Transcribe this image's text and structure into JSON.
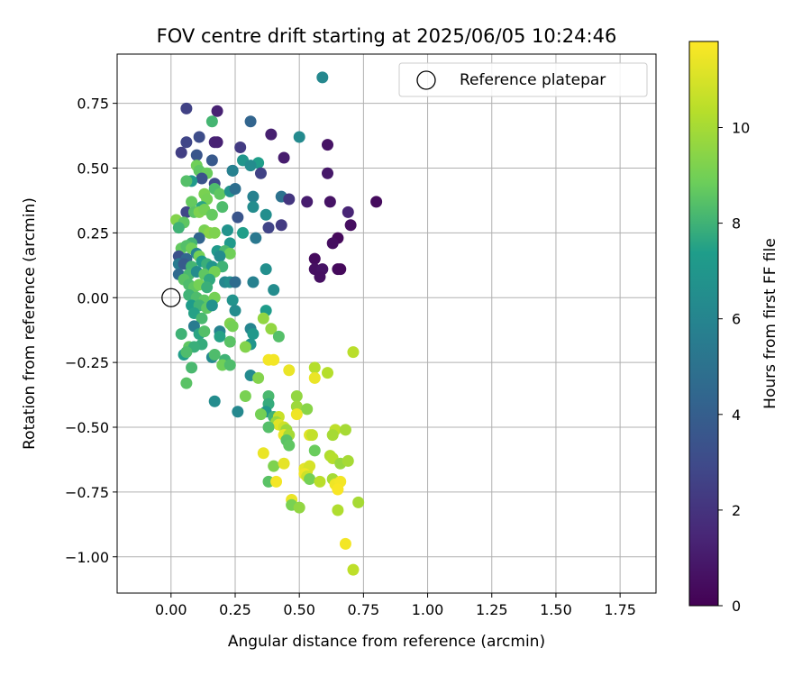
{
  "chart_data": {
    "type": "scatter",
    "title": "FOV centre drift starting at 2025/06/05 10:24:46",
    "xlabel": "Angular distance from reference (arcmin)",
    "ylabel": "Rotation from reference (arcmin)",
    "xlim": [
      -0.21,
      1.89
    ],
    "ylim": [
      -1.14,
      0.94
    ],
    "x_ticks": [
      0.0,
      0.25,
      0.5,
      0.75,
      1.0,
      1.25,
      1.5,
      1.75
    ],
    "x_tick_labels": [
      "0.00",
      "0.25",
      "0.50",
      "0.75",
      "1.00",
      "1.25",
      "1.50",
      "1.75"
    ],
    "y_ticks": [
      -1.0,
      -0.75,
      -0.5,
      -0.25,
      0.0,
      0.25,
      0.5,
      0.75
    ],
    "y_tick_labels": [
      "−1.00",
      "−0.75",
      "−0.50",
      "−0.25",
      "0.00",
      "0.25",
      "0.50",
      "0.75"
    ],
    "grid": true,
    "legend": {
      "position": "top-right",
      "entries": [
        {
          "label": "Reference platepar",
          "marker": "open-circle"
        }
      ]
    },
    "reference_point": {
      "x": 0.0,
      "y": 0.0
    },
    "colorbar": {
      "label": "Hours from first FF file",
      "colormap": "viridis",
      "range": [
        0,
        11.8
      ],
      "ticks": [
        0,
        2,
        4,
        6,
        8,
        10
      ],
      "tick_labels": [
        "0",
        "2",
        "4",
        "6",
        "8",
        "10"
      ]
    },
    "points": [
      {
        "x": 0.59,
        "y": 0.85,
        "h": 6.2
      },
      {
        "x": 0.06,
        "y": 0.73,
        "h": 2.6
      },
      {
        "x": 0.18,
        "y": 0.72,
        "h": 1.3
      },
      {
        "x": 0.31,
        "y": 0.68,
        "h": 4.3
      },
      {
        "x": 0.16,
        "y": 0.68,
        "h": 8.1
      },
      {
        "x": 0.39,
        "y": 0.63,
        "h": 1.2
      },
      {
        "x": 0.5,
        "y": 0.62,
        "h": 6.3
      },
      {
        "x": 0.11,
        "y": 0.62,
        "h": 3.1
      },
      {
        "x": 0.06,
        "y": 0.6,
        "h": 2.8
      },
      {
        "x": 0.17,
        "y": 0.6,
        "h": 1.4
      },
      {
        "x": 0.18,
        "y": 0.6,
        "h": 1.3
      },
      {
        "x": 0.61,
        "y": 0.59,
        "h": 0.7
      },
      {
        "x": 0.27,
        "y": 0.58,
        "h": 2.3
      },
      {
        "x": 0.04,
        "y": 0.56,
        "h": 2.5
      },
      {
        "x": 0.1,
        "y": 0.55,
        "h": 3.5
      },
      {
        "x": 0.44,
        "y": 0.54,
        "h": 1.1
      },
      {
        "x": 0.16,
        "y": 0.53,
        "h": 3.7
      },
      {
        "x": 0.28,
        "y": 0.53,
        "h": 7.0
      },
      {
        "x": 0.34,
        "y": 0.52,
        "h": 7.4
      },
      {
        "x": 0.31,
        "y": 0.51,
        "h": 6.4
      },
      {
        "x": 0.24,
        "y": 0.49,
        "h": 3.8
      },
      {
        "x": 0.1,
        "y": 0.51,
        "h": 8.9
      },
      {
        "x": 0.11,
        "y": 0.49,
        "h": 8.6
      },
      {
        "x": 0.14,
        "y": 0.48,
        "h": 8.8
      },
      {
        "x": 0.24,
        "y": 0.49,
        "h": 5.8
      },
      {
        "x": 0.35,
        "y": 0.48,
        "h": 2.6
      },
      {
        "x": 0.61,
        "y": 0.48,
        "h": 0.9
      },
      {
        "x": 0.12,
        "y": 0.46,
        "h": 3.4
      },
      {
        "x": 0.08,
        "y": 0.45,
        "h": 7.2
      },
      {
        "x": 0.06,
        "y": 0.45,
        "h": 8.4
      },
      {
        "x": 0.17,
        "y": 0.44,
        "h": 3.0
      },
      {
        "x": 0.17,
        "y": 0.42,
        "h": 8.3
      },
      {
        "x": 0.19,
        "y": 0.4,
        "h": 8.6
      },
      {
        "x": 0.23,
        "y": 0.41,
        "h": 6.8
      },
      {
        "x": 0.25,
        "y": 0.42,
        "h": 4.8
      },
      {
        "x": 0.32,
        "y": 0.39,
        "h": 5.8
      },
      {
        "x": 0.43,
        "y": 0.39,
        "h": 5.0
      },
      {
        "x": 0.46,
        "y": 0.38,
        "h": 2.1
      },
      {
        "x": 0.53,
        "y": 0.37,
        "h": 1.1
      },
      {
        "x": 0.62,
        "y": 0.37,
        "h": 0.7
      },
      {
        "x": 0.8,
        "y": 0.37,
        "h": 0.4
      },
      {
        "x": 0.13,
        "y": 0.4,
        "h": 9.1
      },
      {
        "x": 0.14,
        "y": 0.38,
        "h": 9.0
      },
      {
        "x": 0.08,
        "y": 0.37,
        "h": 8.7
      },
      {
        "x": 0.12,
        "y": 0.35,
        "h": 7.6
      },
      {
        "x": 0.2,
        "y": 0.35,
        "h": 8.3
      },
      {
        "x": 0.32,
        "y": 0.35,
        "h": 6.4
      },
      {
        "x": 0.69,
        "y": 0.33,
        "h": 1.4
      },
      {
        "x": 0.06,
        "y": 0.33,
        "h": 2.8
      },
      {
        "x": 0.09,
        "y": 0.33,
        "h": 8.5
      },
      {
        "x": 0.11,
        "y": 0.33,
        "h": 9.2
      },
      {
        "x": 0.13,
        "y": 0.34,
        "h": 9.0
      },
      {
        "x": 0.16,
        "y": 0.32,
        "h": 8.7
      },
      {
        "x": 0.26,
        "y": 0.31,
        "h": 3.5
      },
      {
        "x": 0.37,
        "y": 0.32,
        "h": 6.5
      },
      {
        "x": 0.02,
        "y": 0.3,
        "h": 9.3
      },
      {
        "x": 0.05,
        "y": 0.29,
        "h": 8.6
      },
      {
        "x": 0.03,
        "y": 0.27,
        "h": 8.0
      },
      {
        "x": 0.13,
        "y": 0.26,
        "h": 9.1
      },
      {
        "x": 0.15,
        "y": 0.25,
        "h": 9.4
      },
      {
        "x": 0.17,
        "y": 0.25,
        "h": 9.2
      },
      {
        "x": 0.22,
        "y": 0.26,
        "h": 6.8
      },
      {
        "x": 0.28,
        "y": 0.25,
        "h": 7.4
      },
      {
        "x": 0.38,
        "y": 0.27,
        "h": 2.7
      },
      {
        "x": 0.43,
        "y": 0.28,
        "h": 2.3
      },
      {
        "x": 0.7,
        "y": 0.28,
        "h": 0.5
      },
      {
        "x": 0.65,
        "y": 0.23,
        "h": 0.3
      },
      {
        "x": 0.33,
        "y": 0.23,
        "h": 5.3
      },
      {
        "x": 0.11,
        "y": 0.23,
        "h": 4.3
      },
      {
        "x": 0.08,
        "y": 0.21,
        "h": 8.1
      },
      {
        "x": 0.23,
        "y": 0.21,
        "h": 7.2
      },
      {
        "x": 0.63,
        "y": 0.21,
        "h": 0.5
      },
      {
        "x": 0.04,
        "y": 0.19,
        "h": 8.7
      },
      {
        "x": 0.06,
        "y": 0.2,
        "h": 8.4
      },
      {
        "x": 0.08,
        "y": 0.19,
        "h": 8.9
      },
      {
        "x": 0.1,
        "y": 0.17,
        "h": 6.0
      },
      {
        "x": 0.18,
        "y": 0.18,
        "h": 7.2
      },
      {
        "x": 0.21,
        "y": 0.18,
        "h": 8.2
      },
      {
        "x": 0.23,
        "y": 0.17,
        "h": 8.9
      },
      {
        "x": 0.03,
        "y": 0.16,
        "h": 3.3
      },
      {
        "x": 0.06,
        "y": 0.15,
        "h": 4.4
      },
      {
        "x": 0.11,
        "y": 0.16,
        "h": 9.0
      },
      {
        "x": 0.12,
        "y": 0.14,
        "h": 7.3
      },
      {
        "x": 0.19,
        "y": 0.16,
        "h": 6.4
      },
      {
        "x": 0.56,
        "y": 0.15,
        "h": 0.4
      },
      {
        "x": 0.03,
        "y": 0.13,
        "h": 5.5
      },
      {
        "x": 0.05,
        "y": 0.13,
        "h": 3.8
      },
      {
        "x": 0.08,
        "y": 0.12,
        "h": 8.1
      },
      {
        "x": 0.14,
        "y": 0.13,
        "h": 7.9
      },
      {
        "x": 0.16,
        "y": 0.12,
        "h": 6.9
      },
      {
        "x": 0.2,
        "y": 0.12,
        "h": 8.0
      },
      {
        "x": 0.37,
        "y": 0.11,
        "h": 6.6
      },
      {
        "x": 0.56,
        "y": 0.11,
        "h": 0.6
      },
      {
        "x": 0.59,
        "y": 0.11,
        "h": 0.7
      },
      {
        "x": 0.65,
        "y": 0.11,
        "h": 0.4
      },
      {
        "x": 0.66,
        "y": 0.11,
        "h": 0.3
      },
      {
        "x": 0.03,
        "y": 0.09,
        "h": 4.6
      },
      {
        "x": 0.07,
        "y": 0.09,
        "h": 8.2
      },
      {
        "x": 0.1,
        "y": 0.1,
        "h": 6.4
      },
      {
        "x": 0.13,
        "y": 0.09,
        "h": 8.6
      },
      {
        "x": 0.17,
        "y": 0.1,
        "h": 9.0
      },
      {
        "x": 0.58,
        "y": 0.08,
        "h": 0.6
      },
      {
        "x": 0.05,
        "y": 0.07,
        "h": 8.5
      },
      {
        "x": 0.15,
        "y": 0.07,
        "h": 7.7
      },
      {
        "x": 0.21,
        "y": 0.06,
        "h": 6.1
      },
      {
        "x": 0.23,
        "y": 0.06,
        "h": 6.6
      },
      {
        "x": 0.25,
        "y": 0.06,
        "h": 4.7
      },
      {
        "x": 0.32,
        "y": 0.06,
        "h": 5.8
      },
      {
        "x": 0.07,
        "y": 0.05,
        "h": 8.3
      },
      {
        "x": 0.09,
        "y": 0.04,
        "h": 8.6
      },
      {
        "x": 0.11,
        "y": 0.05,
        "h": 9.0
      },
      {
        "x": 0.14,
        "y": 0.04,
        "h": 7.9
      },
      {
        "x": 0.4,
        "y": 0.03,
        "h": 6.4
      },
      {
        "x": 0.07,
        "y": 0.01,
        "h": 8.0
      },
      {
        "x": 0.1,
        "y": 0.0,
        "h": 8.3
      },
      {
        "x": 0.13,
        "y": -0.01,
        "h": 8.6
      },
      {
        "x": 0.17,
        "y": 0.0,
        "h": 9.0
      },
      {
        "x": 0.24,
        "y": -0.01,
        "h": 6.8
      },
      {
        "x": 0.08,
        "y": -0.03,
        "h": 7.3
      },
      {
        "x": 0.11,
        "y": -0.03,
        "h": 8.0
      },
      {
        "x": 0.14,
        "y": -0.04,
        "h": 8.6
      },
      {
        "x": 0.16,
        "y": -0.03,
        "h": 6.7
      },
      {
        "x": 0.25,
        "y": -0.05,
        "h": 6.4
      },
      {
        "x": 0.37,
        "y": -0.05,
        "h": 7.3
      },
      {
        "x": 0.09,
        "y": -0.06,
        "h": 7.5
      },
      {
        "x": 0.12,
        "y": -0.08,
        "h": 8.2
      },
      {
        "x": 0.36,
        "y": -0.08,
        "h": 9.6
      },
      {
        "x": 0.23,
        "y": -0.1,
        "h": 9.2
      },
      {
        "x": 0.24,
        "y": -0.11,
        "h": 9.0
      },
      {
        "x": 0.09,
        "y": -0.11,
        "h": 5.5
      },
      {
        "x": 0.19,
        "y": -0.13,
        "h": 5.9
      },
      {
        "x": 0.31,
        "y": -0.12,
        "h": 6.0
      },
      {
        "x": 0.39,
        "y": -0.12,
        "h": 9.6
      },
      {
        "x": 0.04,
        "y": -0.14,
        "h": 8.0
      },
      {
        "x": 0.11,
        "y": -0.14,
        "h": 7.6
      },
      {
        "x": 0.13,
        "y": -0.13,
        "h": 8.4
      },
      {
        "x": 0.19,
        "y": -0.15,
        "h": 7.5
      },
      {
        "x": 0.32,
        "y": -0.14,
        "h": 7.1
      },
      {
        "x": 0.42,
        "y": -0.15,
        "h": 8.4
      },
      {
        "x": 0.12,
        "y": -0.18,
        "h": 7.8
      },
      {
        "x": 0.23,
        "y": -0.17,
        "h": 8.5
      },
      {
        "x": 0.31,
        "y": -0.18,
        "h": 6.9
      },
      {
        "x": 0.07,
        "y": -0.19,
        "h": 8.6
      },
      {
        "x": 0.09,
        "y": -0.19,
        "h": 7.9
      },
      {
        "x": 0.29,
        "y": -0.19,
        "h": 9.3
      },
      {
        "x": 0.05,
        "y": -0.22,
        "h": 7.4
      },
      {
        "x": 0.06,
        "y": -0.21,
        "h": 8.3
      },
      {
        "x": 0.16,
        "y": -0.23,
        "h": 6.3
      },
      {
        "x": 0.17,
        "y": -0.22,
        "h": 8.3
      },
      {
        "x": 0.21,
        "y": -0.24,
        "h": 8.0
      },
      {
        "x": 0.38,
        "y": -0.24,
        "h": 11.6
      },
      {
        "x": 0.4,
        "y": -0.24,
        "h": 11.6
      },
      {
        "x": 0.71,
        "y": -0.21,
        "h": 10.4
      },
      {
        "x": 0.08,
        "y": -0.27,
        "h": 8.2
      },
      {
        "x": 0.2,
        "y": -0.26,
        "h": 8.9
      },
      {
        "x": 0.23,
        "y": -0.26,
        "h": 8.3
      },
      {
        "x": 0.46,
        "y": -0.28,
        "h": 11.4
      },
      {
        "x": 0.56,
        "y": -0.27,
        "h": 10.3
      },
      {
        "x": 0.61,
        "y": -0.29,
        "h": 10.3
      },
      {
        "x": 0.31,
        "y": -0.3,
        "h": 6.3
      },
      {
        "x": 0.34,
        "y": -0.31,
        "h": 9.3
      },
      {
        "x": 0.56,
        "y": -0.31,
        "h": 11.4
      },
      {
        "x": 0.06,
        "y": -0.33,
        "h": 8.5
      },
      {
        "x": 0.29,
        "y": -0.38,
        "h": 9.1
      },
      {
        "x": 0.38,
        "y": -0.38,
        "h": 8.2
      },
      {
        "x": 0.49,
        "y": -0.38,
        "h": 9.6
      },
      {
        "x": 0.17,
        "y": -0.4,
        "h": 6.4
      },
      {
        "x": 0.38,
        "y": -0.41,
        "h": 7.8
      },
      {
        "x": 0.37,
        "y": -0.44,
        "h": 7.1
      },
      {
        "x": 0.49,
        "y": -0.42,
        "h": 9.8
      },
      {
        "x": 0.53,
        "y": -0.43,
        "h": 9.4
      },
      {
        "x": 0.26,
        "y": -0.44,
        "h": 6.2
      },
      {
        "x": 0.35,
        "y": -0.45,
        "h": 9.0
      },
      {
        "x": 0.4,
        "y": -0.46,
        "h": 8.0
      },
      {
        "x": 0.42,
        "y": -0.46,
        "h": 10.7
      },
      {
        "x": 0.49,
        "y": -0.45,
        "h": 11.5
      },
      {
        "x": 0.41,
        "y": -0.48,
        "h": 9.7
      },
      {
        "x": 0.42,
        "y": -0.49,
        "h": 11.2
      },
      {
        "x": 0.44,
        "y": -0.5,
        "h": 10.8
      },
      {
        "x": 0.45,
        "y": -0.51,
        "h": 9.8
      },
      {
        "x": 0.38,
        "y": -0.5,
        "h": 8.4
      },
      {
        "x": 0.64,
        "y": -0.51,
        "h": 10.5
      },
      {
        "x": 0.68,
        "y": -0.51,
        "h": 10.0
      },
      {
        "x": 0.44,
        "y": -0.53,
        "h": 11.4
      },
      {
        "x": 0.46,
        "y": -0.53,
        "h": 10.0
      },
      {
        "x": 0.54,
        "y": -0.53,
        "h": 11.2
      },
      {
        "x": 0.55,
        "y": -0.53,
        "h": 10.6
      },
      {
        "x": 0.63,
        "y": -0.53,
        "h": 10.0
      },
      {
        "x": 0.45,
        "y": -0.55,
        "h": 8.5
      },
      {
        "x": 0.46,
        "y": -0.57,
        "h": 8.6
      },
      {
        "x": 0.36,
        "y": -0.6,
        "h": 11.4
      },
      {
        "x": 0.56,
        "y": -0.59,
        "h": 8.8
      },
      {
        "x": 0.62,
        "y": -0.61,
        "h": 10.2
      },
      {
        "x": 0.63,
        "y": -0.62,
        "h": 10.3
      },
      {
        "x": 0.66,
        "y": -0.64,
        "h": 9.7
      },
      {
        "x": 0.69,
        "y": -0.63,
        "h": 10.0
      },
      {
        "x": 0.4,
        "y": -0.65,
        "h": 9.2
      },
      {
        "x": 0.44,
        "y": -0.64,
        "h": 11.3
      },
      {
        "x": 0.52,
        "y": -0.66,
        "h": 11.3
      },
      {
        "x": 0.53,
        "y": -0.67,
        "h": 11.1
      },
      {
        "x": 0.54,
        "y": -0.65,
        "h": 11.0
      },
      {
        "x": 0.52,
        "y": -0.68,
        "h": 11.5
      },
      {
        "x": 0.53,
        "y": -0.69,
        "h": 10.8
      },
      {
        "x": 0.38,
        "y": -0.71,
        "h": 8.5
      },
      {
        "x": 0.41,
        "y": -0.71,
        "h": 11.6
      },
      {
        "x": 0.54,
        "y": -0.7,
        "h": 9.0
      },
      {
        "x": 0.58,
        "y": -0.71,
        "h": 10.4
      },
      {
        "x": 0.63,
        "y": -0.7,
        "h": 10.0
      },
      {
        "x": 0.64,
        "y": -0.72,
        "h": 11.5
      },
      {
        "x": 0.66,
        "y": -0.71,
        "h": 11.6
      },
      {
        "x": 0.65,
        "y": -0.74,
        "h": 11.7
      },
      {
        "x": 0.47,
        "y": -0.78,
        "h": 11.4
      },
      {
        "x": 0.47,
        "y": -0.8,
        "h": 9.1
      },
      {
        "x": 0.5,
        "y": -0.81,
        "h": 9.6
      },
      {
        "x": 0.65,
        "y": -0.82,
        "h": 10.2
      },
      {
        "x": 0.73,
        "y": -0.79,
        "h": 10.0
      },
      {
        "x": 0.68,
        "y": -0.95,
        "h": 11.6
      },
      {
        "x": 0.71,
        "y": -1.05,
        "h": 10.5
      }
    ]
  }
}
